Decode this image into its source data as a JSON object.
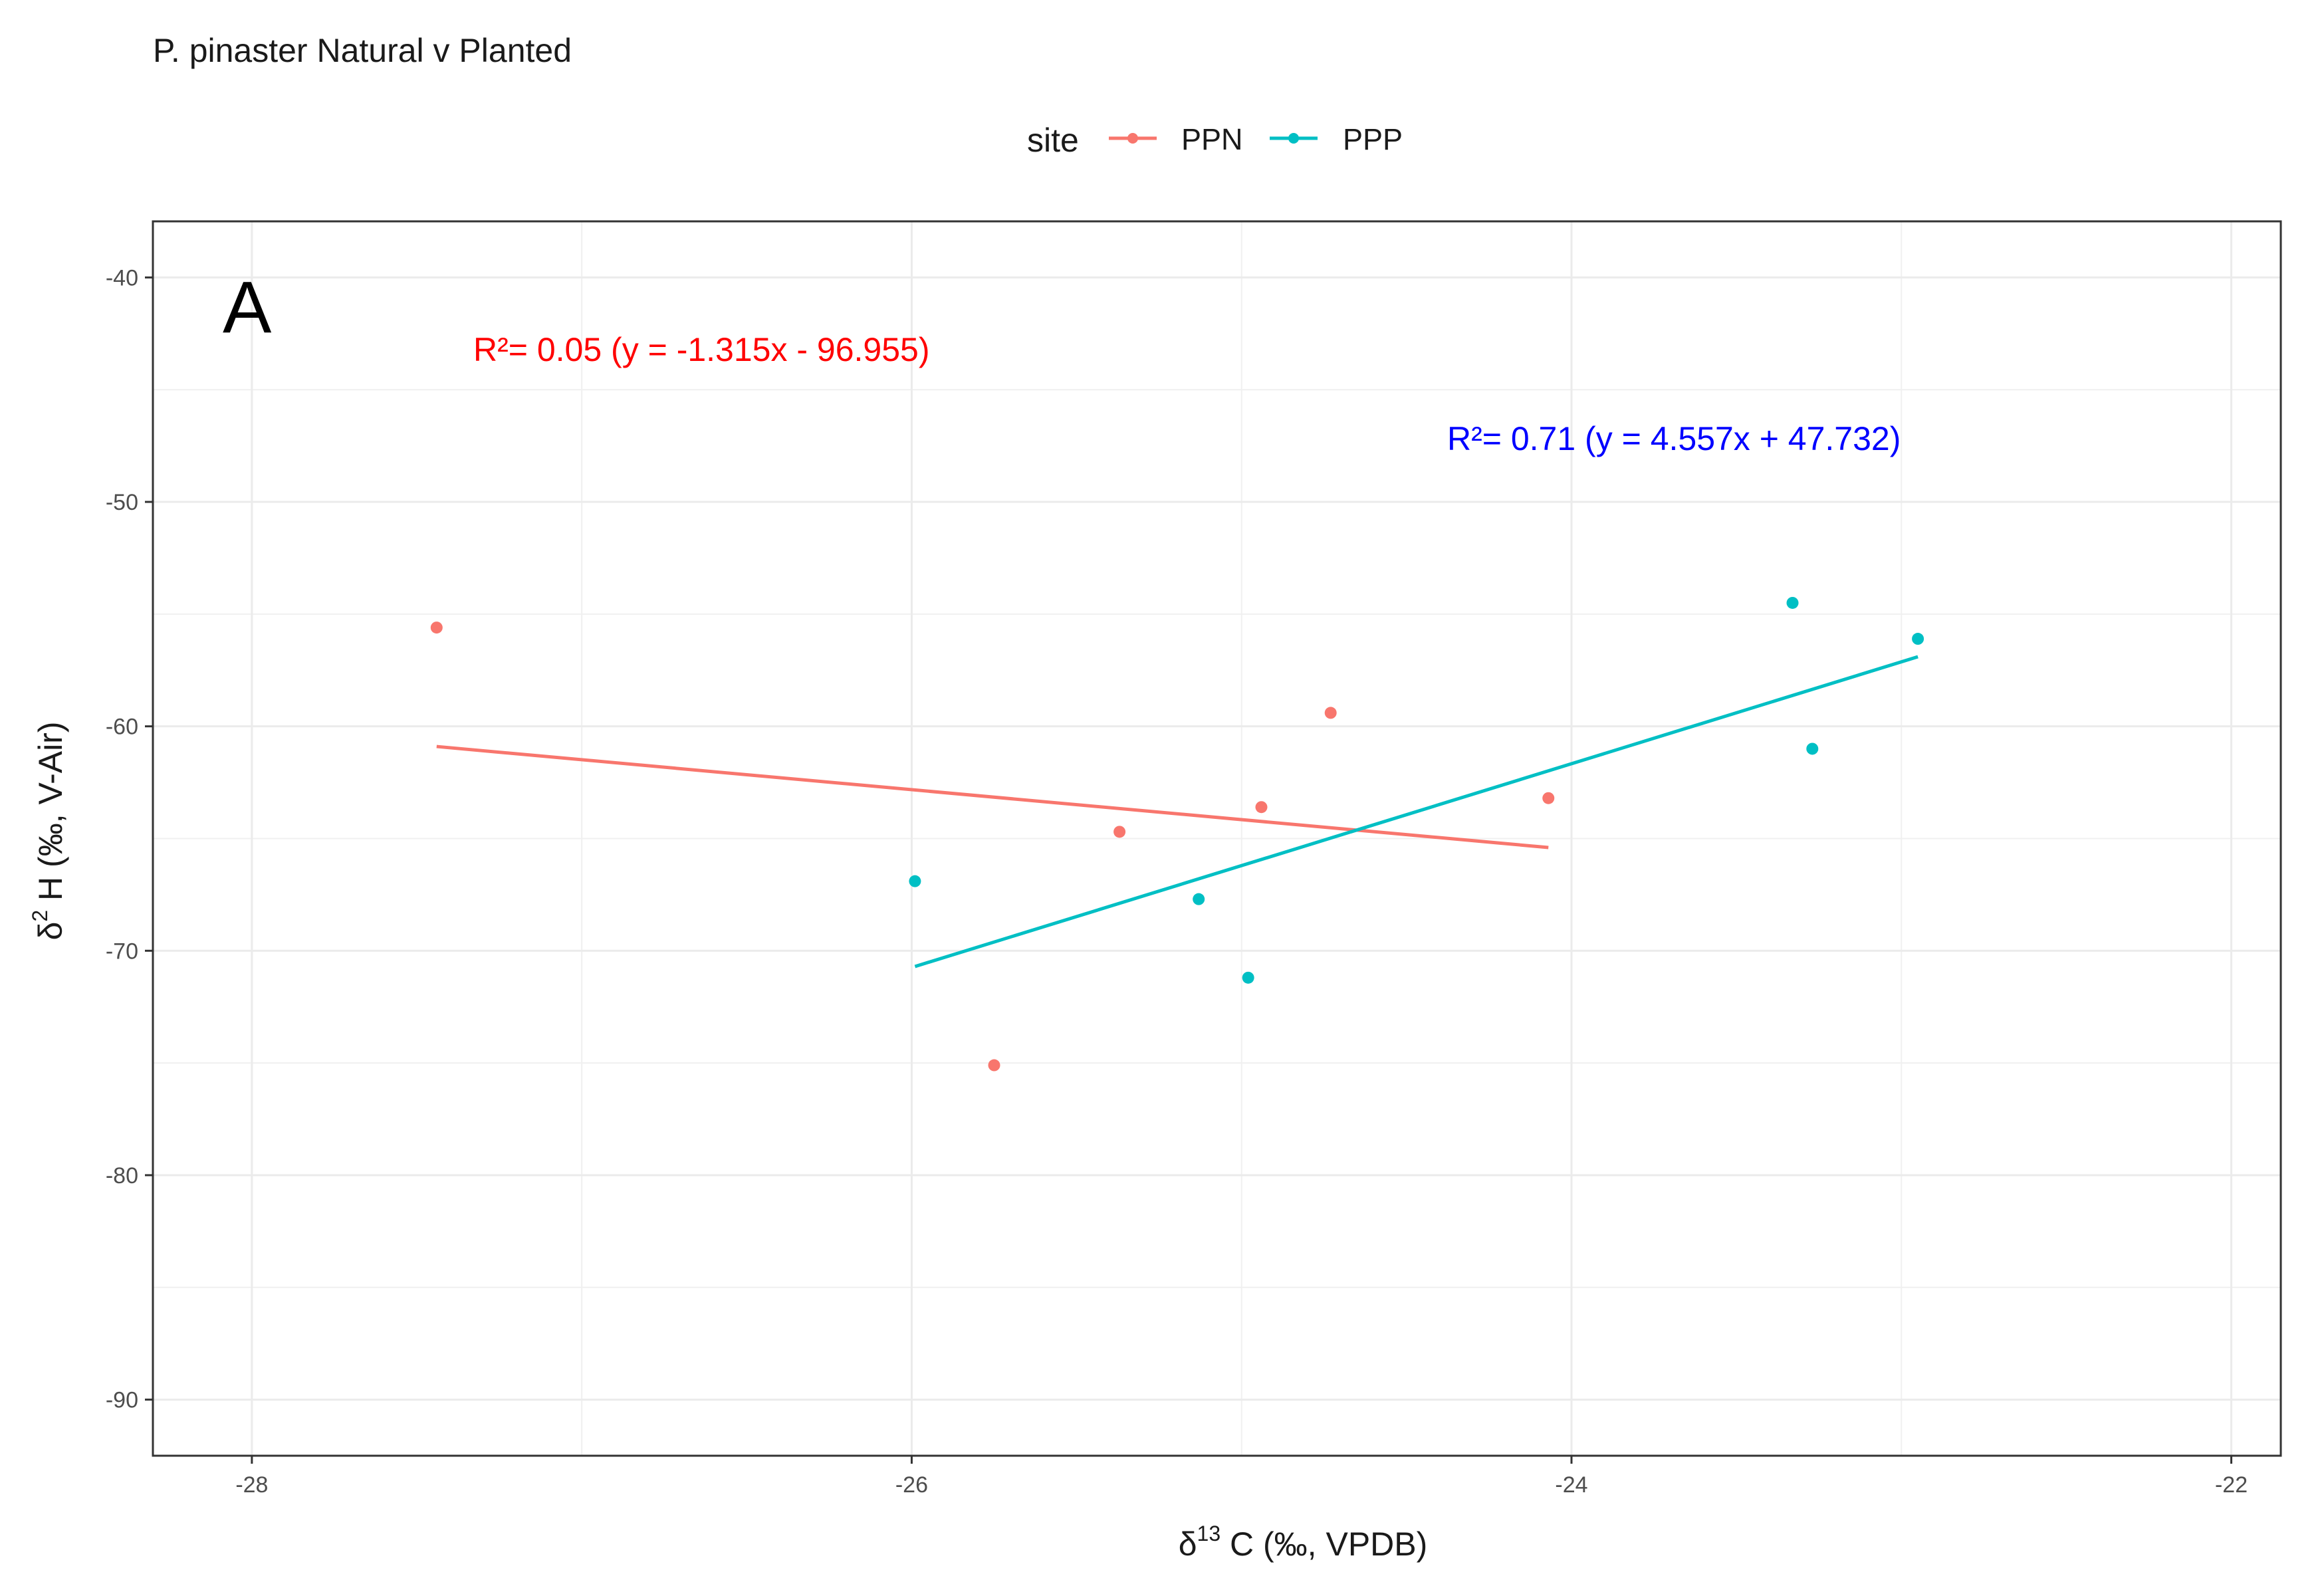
{
  "chart_data": {
    "type": "scatter",
    "title": "P. pinaster Natural v Planted",
    "xlabel_parts": {
      "prefix": "δ",
      "superscript": "13",
      "suffix": " C (‰, VPDB)"
    },
    "ylabel_parts": {
      "prefix": "δ",
      "superscript": "2",
      "suffix": " H (‰, V-Air)"
    },
    "xlim": [
      -28.3,
      -21.85
    ],
    "ylim": [
      -92.5,
      -37.5
    ],
    "x_ticks": [
      -28,
      -26,
      -24,
      -22
    ],
    "y_ticks": [
      -90,
      -80,
      -70,
      -60,
      -50,
      -40
    ],
    "x_tick_labels": [
      "-28",
      "-26",
      "-24",
      "-22"
    ],
    "y_tick_labels": [
      "-90",
      "-80",
      "-70",
      "-60",
      "-50",
      "-40"
    ],
    "grid": true,
    "legend": {
      "title": "site",
      "position": "top",
      "entries": [
        "PPN",
        "PPP"
      ]
    },
    "panel_label": "A",
    "series": [
      {
        "name": "PPN",
        "color": "#F8766D",
        "points": [
          {
            "x": -27.44,
            "y": -55.6
          },
          {
            "x": -25.75,
            "y": -75.1
          },
          {
            "x": -25.37,
            "y": -64.7
          },
          {
            "x": -24.94,
            "y": -63.6
          },
          {
            "x": -24.73,
            "y": -59.4
          },
          {
            "x": -24.07,
            "y": -63.2
          }
        ],
        "fit": {
          "x_start": -27.44,
          "x_end": -24.07,
          "y_start": -60.9,
          "y_end": -65.4
        },
        "annotation": "R²= 0.05 (y = -1.315x - 96.955)",
        "annotation_color": "#FF0000"
      },
      {
        "name": "PPP",
        "color": "#00BFC4",
        "points": [
          {
            "x": -25.99,
            "y": -66.9
          },
          {
            "x": -25.13,
            "y": -67.7
          },
          {
            "x": -24.98,
            "y": -71.2
          },
          {
            "x": -23.33,
            "y": -54.5
          },
          {
            "x": -23.27,
            "y": -61.0
          },
          {
            "x": -22.95,
            "y": -56.1
          }
        ],
        "fit": {
          "x_start": -25.99,
          "x_end": -22.95,
          "y_start": -70.7,
          "y_end": -56.9
        },
        "annotation": "R²= 0.71 (y = 4.557x + 47.732)",
        "annotation_color": "#0000FF"
      }
    ]
  }
}
